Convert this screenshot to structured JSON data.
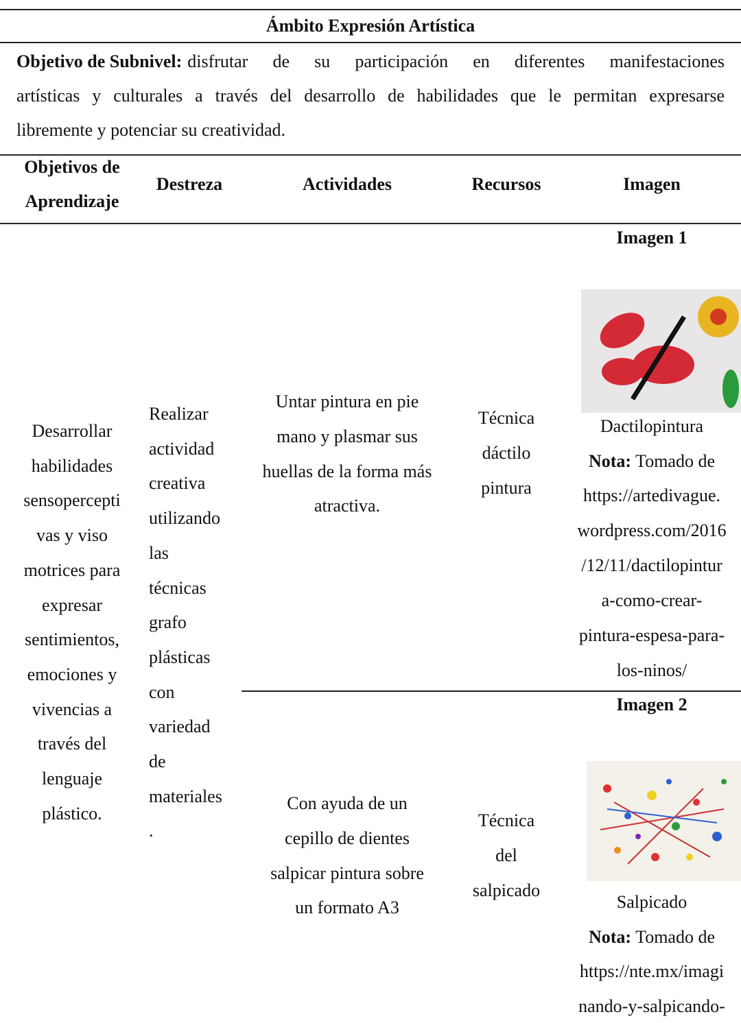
{
  "header": {
    "title": "Ámbito Expresión Artística"
  },
  "objective": {
    "label": "Objetivo de Subnivel:",
    "lines": [
      "disfrutar de su participación en diferentes manifestaciones",
      "artísticas y culturales a través del desarrollo de habilidades que le permitan expresarse",
      "libremente y potenciar su creatividad."
    ]
  },
  "table": {
    "headers": [
      [
        "Objetivos de",
        "Aprendizaje"
      ],
      [
        "Destreza"
      ],
      [
        "Actividades"
      ],
      [
        "Recursos"
      ],
      [
        "Imagen"
      ]
    ],
    "objective_lines": [
      "Desarrollar",
      "habilidades",
      "sensopercepti",
      "vas y viso",
      "motrices para",
      "expresar",
      "sentimientos,",
      "emociones y",
      "vivencias a",
      "través del",
      "lenguaje",
      "plástico."
    ],
    "skill_lines": [
      "Realizar",
      "actividad",
      "creativa",
      "utilizando",
      "las",
      "técnicas",
      "grafo",
      "plásticas",
      "con",
      "variedad",
      "de",
      "materiales",
      "."
    ],
    "rows": [
      {
        "activity": [
          "Untar pintura en pie",
          "mano y plasmar sus",
          "huellas de la forma más",
          "atractiva."
        ],
        "resources": [
          "Técnica",
          "dáctilo",
          "pintura"
        ],
        "image_title": "Imagen 1",
        "caption": "Dactilopintura",
        "note_label": "Nota:",
        "note_text": "Tomado de",
        "url_lines": [
          "https://artedivague.",
          "wordpress.com/2016",
          "/12/11/dactilopintur",
          "a-como-crear-",
          "pintura-espesa-para-",
          "los-ninos/"
        ]
      },
      {
        "activity": [
          "Con ayuda de un",
          "cepillo de dientes",
          "salpicar pintura sobre",
          "un formato A3"
        ],
        "resources": [
          "Técnica",
          "del",
          "salpicado"
        ],
        "image_title": "Imagen 2",
        "caption": "Salpicado",
        "note_label": "Nota:",
        "note_text": "Tomado de",
        "url_lines": [
          "https://nte.mx/imagi",
          "nando-y-salpicando-"
        ]
      }
    ]
  }
}
